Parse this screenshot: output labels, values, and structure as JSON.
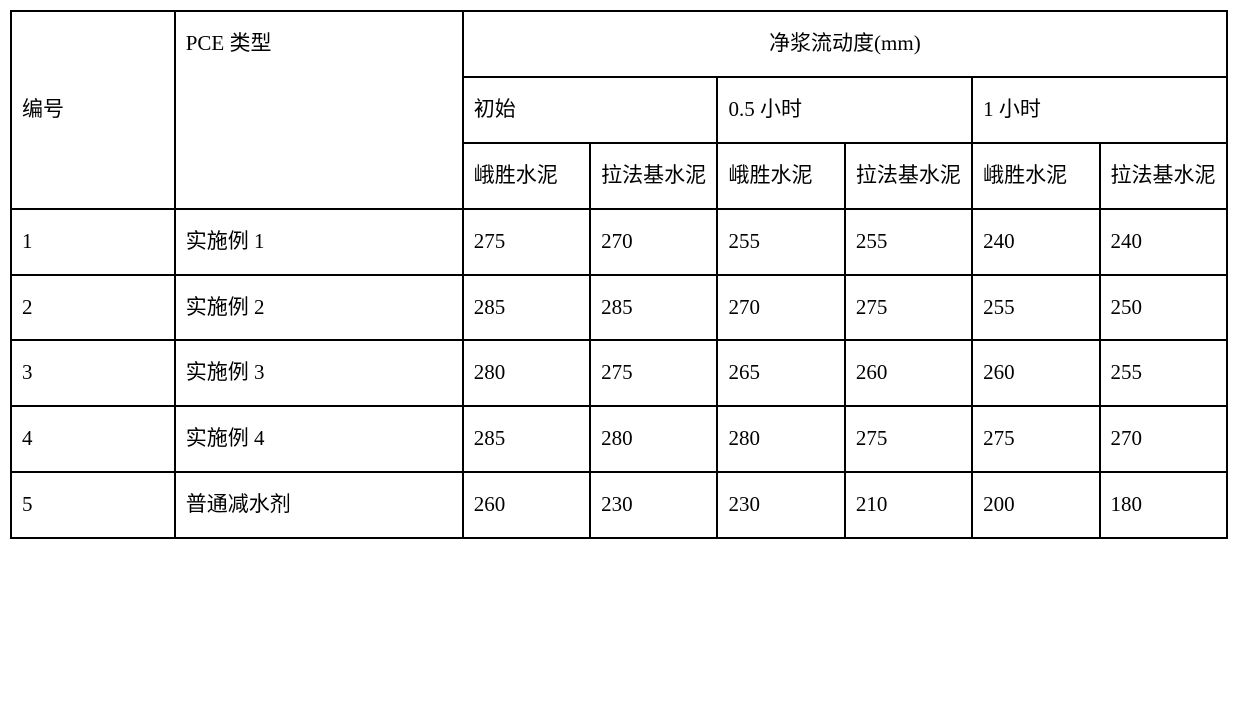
{
  "header": {
    "id_label": "编号",
    "type_label": "PCE 类型",
    "main_header": "净浆流动度(mm)",
    "time_labels": [
      "初始",
      "0.5 小时",
      "1 小时"
    ],
    "cement_labels": [
      "峨胜水泥",
      "拉法基水泥"
    ]
  },
  "rows": [
    {
      "id": "1",
      "type": "实施例 1",
      "values": [
        "275",
        "270",
        "255",
        "255",
        "240",
        "240"
      ]
    },
    {
      "id": "2",
      "type": "实施例 2",
      "values": [
        "285",
        "285",
        "270",
        "275",
        "255",
        "250"
      ]
    },
    {
      "id": "3",
      "type": "实施例 3",
      "values": [
        "280",
        "275",
        "265",
        "260",
        "260",
        "255"
      ]
    },
    {
      "id": "4",
      "type": "实施例 4",
      "values": [
        "285",
        "280",
        "280",
        "275",
        "275",
        "270"
      ]
    },
    {
      "id": "5",
      "type": "普通减水剂",
      "values": [
        "260",
        "230",
        "230",
        "210",
        "200",
        "180"
      ]
    }
  ],
  "style": {
    "font_size": 21,
    "border_color": "#000000",
    "background_color": "#ffffff",
    "text_color": "#000000",
    "line_height": 1.9,
    "col_widths": {
      "id": 162,
      "type": 285,
      "data": 126
    }
  }
}
